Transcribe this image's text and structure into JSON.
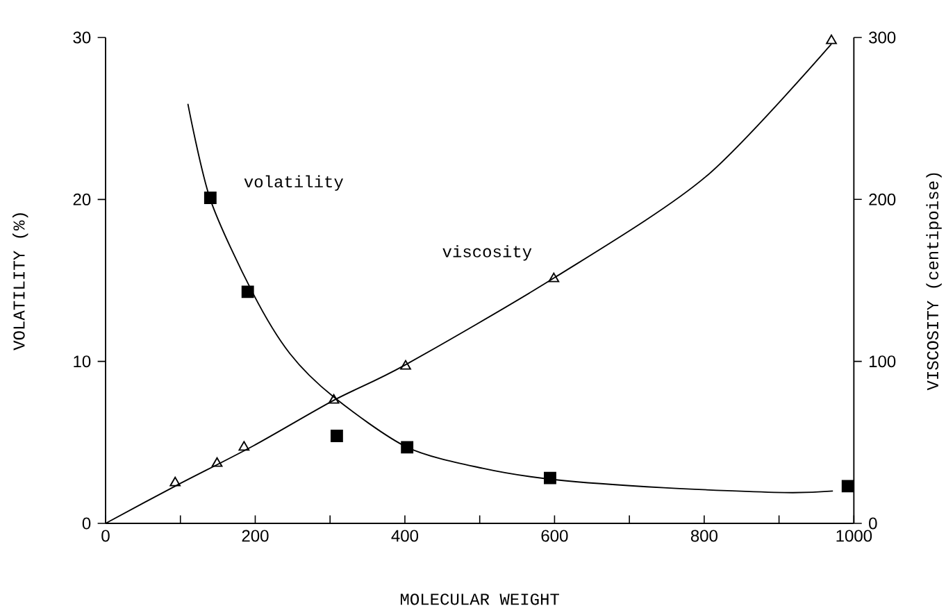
{
  "chart_data": {
    "type": "scatter",
    "xlabel": "MOLECULAR WEIGHT",
    "ylabel": "VOLATILITY (%)",
    "y2label": "VISCOSITY (centipoise)",
    "xlim": [
      0,
      1000
    ],
    "xticks": [
      0,
      {
        "value": 100,
        "label": null
      },
      200,
      {
        "value": 300,
        "label": null
      },
      400,
      {
        "value": 500,
        "label": null
      },
      600,
      {
        "value": 700,
        "label": null
      },
      800,
      {
        "value": 900,
        "label": null
      },
      1000
    ],
    "ylim": [
      0,
      30
    ],
    "yticks": [
      0,
      10,
      20,
      30
    ],
    "y2lim": [
      0,
      300
    ],
    "y2ticks": [
      0,
      100,
      200,
      300
    ],
    "series": [
      {
        "name": "volatility",
        "marker": "square",
        "color": "#000000",
        "x": [
          140,
          190,
          309,
          403,
          594,
          992
        ],
        "values": [
          20.1,
          14.3,
          5.4,
          4.7,
          2.8,
          2.3
        ]
      },
      {
        "name": "viscosity",
        "marker": "triangle",
        "color": "#000000",
        "axis": "y2",
        "x": [
          93,
          149,
          185,
          305,
          401,
          599,
          970
        ],
        "values": [
          25,
          37,
          47,
          76,
          97,
          151,
          298
        ]
      },
      {
        "type": "line",
        "marker": "none",
        "color": "#000000",
        "x": [
          110,
          140,
          197,
          246,
          305,
          403,
          504,
          600,
          746,
          907,
          972
        ],
        "values": [
          25.9,
          20,
          14.2,
          10.5,
          7.8,
          4.7,
          3.4,
          2.7,
          2.2,
          1.9,
          2.0
        ]
      },
      {
        "type": "line",
        "marker": "none",
        "color": "#000000",
        "axis": "y2",
        "x": [
          0,
          93,
          198,
          305,
          401,
          601,
          802,
          970
        ],
        "values": [
          0,
          23,
          48,
          76,
          98,
          152,
          214,
          296
        ]
      }
    ]
  }
}
